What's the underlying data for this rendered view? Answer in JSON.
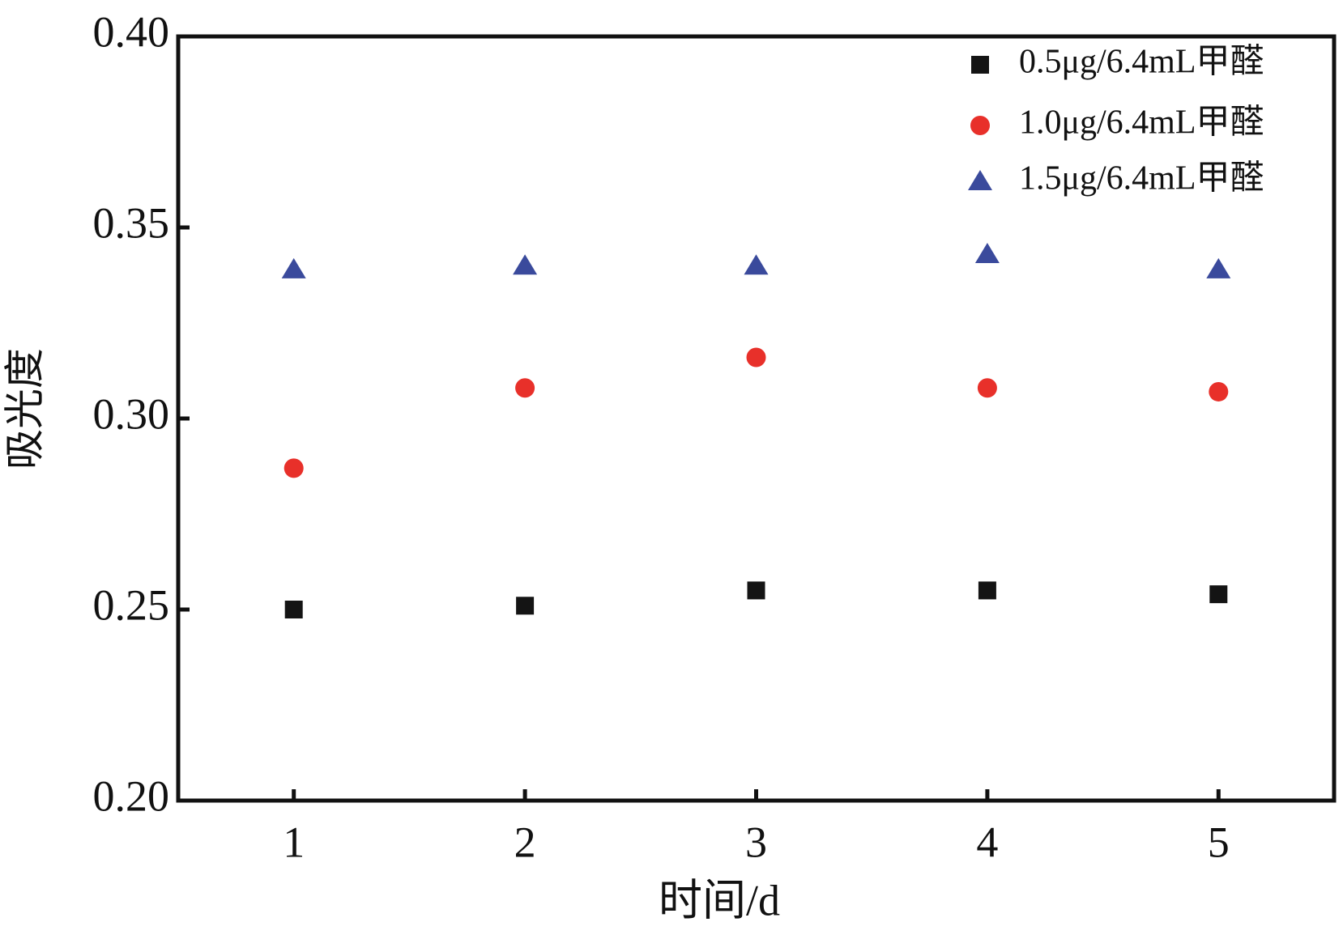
{
  "chart_data": {
    "type": "scatter",
    "x_label": "时间/d",
    "y_label": "吸光度",
    "x": [
      1,
      2,
      3,
      4,
      5
    ],
    "series": [
      {
        "name": "0.5μg/6.4mL甲醛",
        "color": "#141414",
        "marker": "square",
        "values": [
          0.25,
          0.251,
          0.255,
          0.255,
          0.254
        ]
      },
      {
        "name": "1.0μg/6.4mL甲醛",
        "color": "#e8302a",
        "marker": "circle",
        "values": [
          0.287,
          0.308,
          0.316,
          0.308,
          0.307
        ]
      },
      {
        "name": "1.5μg/6.4mL甲醛",
        "color": "#3a4a9c",
        "marker": "triangle",
        "values": [
          0.339,
          0.34,
          0.34,
          0.343,
          0.339
        ]
      }
    ],
    "xlim": [
      0.5,
      5.5
    ],
    "xticks": [
      1,
      2,
      3,
      4,
      5
    ],
    "ylim": [
      0.2,
      0.4
    ],
    "yticks": [
      {
        "value": 0.2,
        "label": "0.20"
      },
      {
        "value": 0.25,
        "label": "0.25"
      },
      {
        "value": 0.3,
        "label": "0.30"
      },
      {
        "value": 0.35,
        "label": "0.35"
      },
      {
        "value": 0.4,
        "label": "0.40"
      }
    ],
    "legend": "upper-right",
    "grid": false
  }
}
